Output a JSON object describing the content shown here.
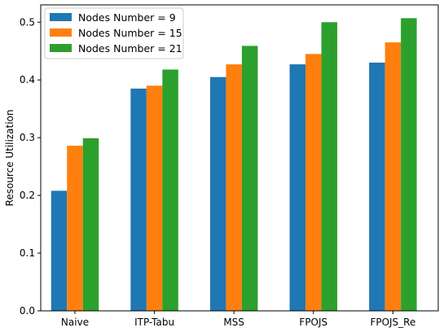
{
  "chart_data": {
    "type": "bar",
    "title": "",
    "xlabel": "",
    "ylabel": "Resource Utilization",
    "categories": [
      "Naive",
      "ITP-Tabu",
      "MSS",
      "FPOJS",
      "FPOJS_Re"
    ],
    "series": [
      {
        "name": "Nodes Number = 9",
        "color": "#1f77b4",
        "values": [
          0.208,
          0.385,
          0.405,
          0.427,
          0.43
        ]
      },
      {
        "name": "Nodes Number = 15",
        "color": "#ff7f0e",
        "values": [
          0.286,
          0.39,
          0.427,
          0.445,
          0.465
        ]
      },
      {
        "name": "Nodes Number = 21",
        "color": "#2ca02c",
        "values": [
          0.299,
          0.418,
          0.459,
          0.5,
          0.507
        ]
      }
    ],
    "ylim": [
      0,
      0.53
    ],
    "yticks": [
      0.0,
      0.1,
      0.2,
      0.3,
      0.4,
      0.5
    ],
    "ytick_labels": [
      "0.0",
      "0.1",
      "0.2",
      "0.3",
      "0.4",
      "0.5"
    ],
    "grid": false,
    "legend_position": "top-left"
  }
}
